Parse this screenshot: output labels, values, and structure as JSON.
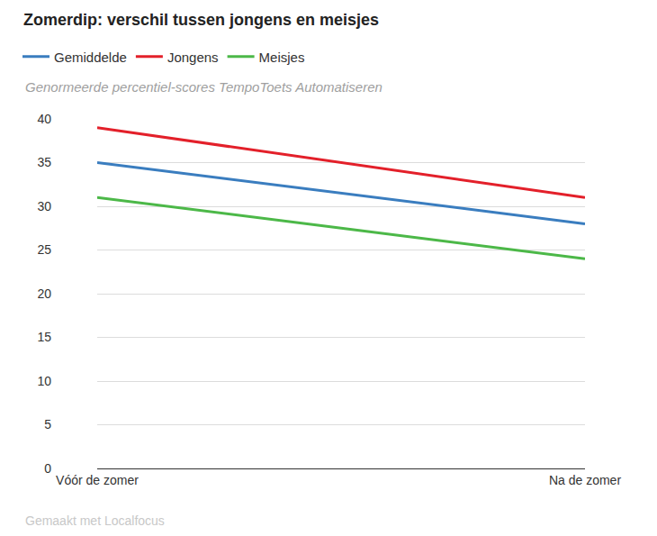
{
  "chart_data": {
    "type": "line",
    "title": "Zomerdip: verschil tussen jongens en meisjes",
    "subtitle": "Genormeerde percentiel-scores TempoToets Automatiseren",
    "source": "Gemaakt met Localfocus",
    "categories": [
      "Vóór de zomer",
      "Na de zomer"
    ],
    "series": [
      {
        "name": "Gemiddelde",
        "color": "#3a7dbf",
        "values": [
          35,
          28
        ]
      },
      {
        "name": "Jongens",
        "color": "#e3202a",
        "values": [
          39,
          31
        ]
      },
      {
        "name": "Meisjes",
        "color": "#4cb848",
        "values": [
          31,
          24
        ]
      }
    ],
    "ylim": [
      0,
      40
    ],
    "yticks": [
      0,
      5,
      10,
      15,
      20,
      25,
      30,
      35,
      40
    ],
    "grid": true,
    "legend": "top-left"
  }
}
